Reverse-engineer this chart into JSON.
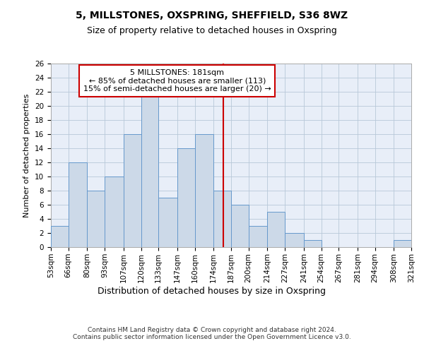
{
  "title": "5, MILLSTONES, OXSPRING, SHEFFIELD, S36 8WZ",
  "subtitle": "Size of property relative to detached houses in Oxspring",
  "xlabel": "Distribution of detached houses by size in Oxspring",
  "ylabel": "Number of detached properties",
  "bin_labels": [
    "53sqm",
    "66sqm",
    "80sqm",
    "93sqm",
    "107sqm",
    "120sqm",
    "133sqm",
    "147sqm",
    "160sqm",
    "174sqm",
    "187sqm",
    "200sqm",
    "214sqm",
    "227sqm",
    "241sqm",
    "254sqm",
    "267sqm",
    "281sqm",
    "294sqm",
    "308sqm",
    "321sqm"
  ],
  "bar_values": [
    3,
    12,
    8,
    10,
    16,
    22,
    7,
    14,
    16,
    8,
    6,
    3,
    5,
    2,
    1,
    0,
    0,
    0,
    0,
    1
  ],
  "bin_edges": [
    53,
    66,
    80,
    93,
    107,
    120,
    133,
    147,
    160,
    174,
    187,
    200,
    214,
    227,
    241,
    254,
    267,
    281,
    294,
    308,
    321
  ],
  "bar_color": "#ccd9e8",
  "bar_edge_color": "#6699cc",
  "property_line_x": 181,
  "property_line_color": "#cc0000",
  "annotation_text": "5 MILLSTONES: 181sqm\n← 85% of detached houses are smaller (113)\n15% of semi-detached houses are larger (20) →",
  "annotation_box_color": "#cc0000",
  "ylim": [
    0,
    26
  ],
  "yticks": [
    0,
    2,
    4,
    6,
    8,
    10,
    12,
    14,
    16,
    18,
    20,
    22,
    24,
    26
  ],
  "grid_color": "#b8c8d8",
  "bg_color": "#e8eef8",
  "footer_text": "Contains HM Land Registry data © Crown copyright and database right 2024.\nContains public sector information licensed under the Open Government Licence v3.0.",
  "title_fontsize": 10,
  "subtitle_fontsize": 9,
  "xlabel_fontsize": 9,
  "ylabel_fontsize": 8,
  "tick_fontsize": 7.5,
  "annotation_fontsize": 8,
  "footer_fontsize": 6.5
}
